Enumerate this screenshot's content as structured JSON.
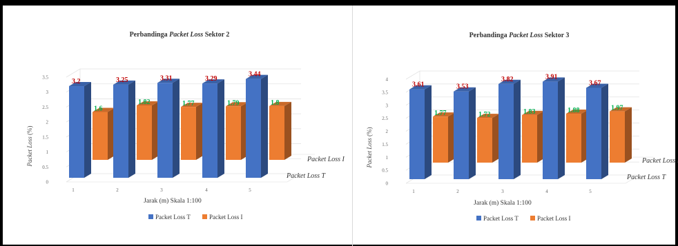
{
  "chart_data": [
    {
      "type": "bar",
      "title_prefix": "Perbandinga",
      "title_italic": "Packet Loss",
      "title_suffix": "Sektor 2",
      "xlabel": "Jarak (m) Skala 1:100",
      "ylabel_italic": "Packet Loss",
      "ylabel_unit": "(%)",
      "categories": [
        "1",
        "2",
        "3",
        "4",
        "5"
      ],
      "yticks": [
        "0",
        "0.5",
        "1",
        "1.5",
        "2",
        "2.5",
        "3",
        "3.5"
      ],
      "ylim": [
        0,
        3.5
      ],
      "series": [
        {
          "name": "Packet Loss T",
          "values": [
            3.2,
            3.25,
            3.31,
            3.29,
            3.44
          ],
          "labels": [
            "3.2",
            "3.25",
            "3.31",
            "3.29",
            "3.44"
          ],
          "color": "#4472c4"
        },
        {
          "name": "Packet Loss I",
          "values": [
            1.6,
            1.82,
            1.77,
            1.79,
            1.8
          ],
          "labels": [
            "1.6",
            "1.82",
            "1.77",
            "1.79",
            "1.8"
          ],
          "color": "#ed7d31"
        }
      ],
      "legend": "bottom",
      "grid": true
    },
    {
      "type": "bar",
      "title_prefix": "Perbandinga",
      "title_italic": "Packet Loss",
      "title_suffix": "Sektor 3",
      "xlabel": "Jarak (m) Skala 1:100",
      "ylabel_italic": "Packet Loss",
      "ylabel_unit": "(%)",
      "categories": [
        "1",
        "2",
        "3",
        "4",
        "5"
      ],
      "yticks": [
        "0",
        "0.5",
        "1",
        "1.5",
        "2",
        "2.5",
        "3",
        "3.5",
        "4"
      ],
      "ylim": [
        0,
        4
      ],
      "series": [
        {
          "name": "Packet Loss T",
          "values": [
            3.61,
            3.53,
            3.82,
            3.91,
            3.67
          ],
          "labels": [
            "3.61",
            "3.53",
            "3.82",
            "3.91",
            "3.67"
          ],
          "color": "#4472c4"
        },
        {
          "name": "Packet Loss I",
          "values": [
            1.77,
            1.72,
            1.83,
            1.88,
            1.97
          ],
          "labels": [
            "1.77",
            "1.72",
            "1.83",
            "1.88",
            "1.97"
          ],
          "color": "#ed7d31"
        }
      ],
      "legend": "bottom",
      "grid": true
    }
  ]
}
